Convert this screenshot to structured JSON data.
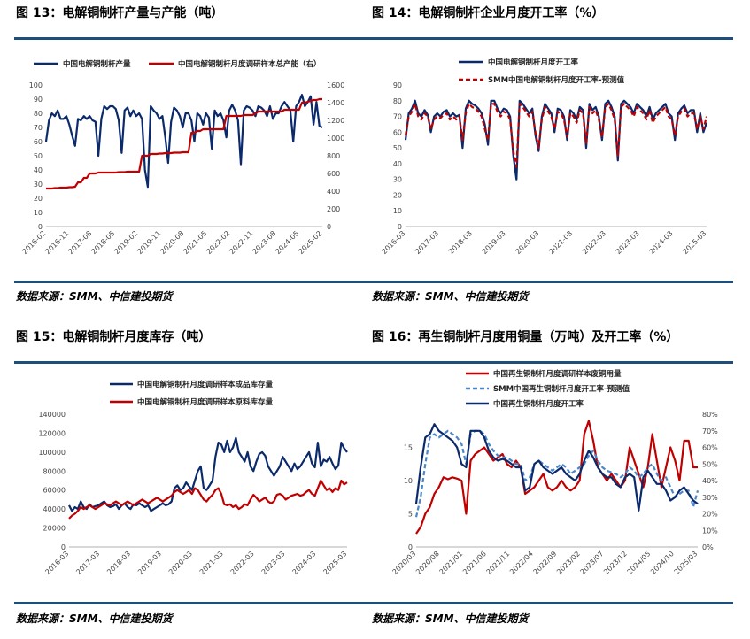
{
  "charts": [
    {
      "id": "c13",
      "title": "图 13：电解铜制杆产量与产能（吨）",
      "source": "数据来源：SMM、中信建投期货"
    },
    {
      "id": "c14",
      "title": "图 14：电解铜制杆企业月度开工率（%）",
      "source": "数据来源：SMM、中信建投期货"
    },
    {
      "id": "c15",
      "title": "图 15：电解铜制杆月度库存（吨）",
      "source": "数据来源：SMM、中信建投期货"
    },
    {
      "id": "c16",
      "title": "图 16：再生铜制杆月度用铜量（万吨）及开工率（%）",
      "source": "数据来源：SMM、中信建投期货"
    }
  ],
  "chart_data": [
    {
      "type": "line",
      "title": "图 13：电解铜制杆产量与产能（吨）",
      "x_ticks": [
        "2016-02",
        "2016-11",
        "2017-08",
        "2018-05",
        "2019-02",
        "2019-11",
        "2020-08",
        "2021-05",
        "2022-02",
        "2022-11",
        "2023-08",
        "2024-05",
        "2025-02"
      ],
      "ylim": [
        0,
        100
      ],
      "y_ticks": [
        0,
        10,
        20,
        30,
        40,
        50,
        60,
        70,
        80,
        90,
        100
      ],
      "y2lim": [
        0,
        1600
      ],
      "y2_ticks": [
        0,
        200,
        400,
        600,
        800,
        1000,
        1200,
        1400,
        1600
      ],
      "colors": [
        "#0b2a6b",
        "#c00000"
      ],
      "series": [
        {
          "name": "中国电解铜制杆产量",
          "axis": "left",
          "values": [
            60,
            75,
            80,
            78,
            82,
            76,
            76,
            78,
            72,
            64,
            57,
            76,
            75,
            78,
            76,
            78,
            75,
            74,
            50,
            76,
            85,
            83,
            85,
            85,
            83,
            75,
            52,
            82,
            84,
            78,
            82,
            78,
            80,
            76,
            40,
            28,
            85,
            82,
            80,
            76,
            78,
            63,
            45,
            74,
            84,
            82,
            78,
            70,
            80,
            80,
            75,
            60,
            80,
            78,
            72,
            80,
            77,
            55,
            82,
            78,
            80,
            75,
            63,
            82,
            86,
            82,
            75,
            44,
            82,
            85,
            84,
            82,
            78,
            85,
            84,
            82,
            78,
            85,
            76,
            80,
            80,
            85,
            88,
            85,
            82,
            60,
            85,
            88,
            93,
            85,
            88,
            92,
            72,
            88,
            71,
            70
          ]
        },
        {
          "name": "中国电解铜制杆月度调研样本总产能（右）",
          "axis": "right",
          "values": [
            430,
            430,
            430,
            435,
            435,
            440,
            440,
            440,
            445,
            445,
            450,
            500,
            500,
            550,
            550,
            600,
            600,
            600,
            610,
            610,
            610,
            610,
            610,
            610,
            610,
            615,
            615,
            615,
            620,
            620,
            620,
            620,
            620,
            800,
            800,
            800,
            820,
            820,
            820,
            825,
            825,
            830,
            830,
            830,
            835,
            835,
            835,
            840,
            840,
            840,
            1060,
            1060,
            1080,
            1080,
            1100,
            1100,
            1100,
            1100,
            1100,
            1100,
            1100,
            1100,
            1250,
            1250,
            1250,
            1250,
            1250,
            1250,
            1260,
            1260,
            1260,
            1260,
            1280,
            1300,
            1300,
            1300,
            1300,
            1300,
            1300,
            1300,
            1300,
            1300,
            1320,
            1320,
            1320,
            1320,
            1320,
            1320,
            1400,
            1400,
            1410,
            1420,
            1430,
            1430,
            1440,
            1440
          ]
        }
      ]
    },
    {
      "type": "line",
      "title": "图 14：电解铜制杆企业月度开工率（%）",
      "x_ticks": [
        "2016-03",
        "2017-03",
        "2018-03",
        "2019-03",
        "2020-03",
        "2021-03",
        "2022-03",
        "2023-03",
        "2024-03",
        "2025-03"
      ],
      "ylim": [
        0,
        90
      ],
      "y_ticks": [
        0,
        10,
        20,
        30,
        40,
        50,
        60,
        70,
        80,
        90
      ],
      "colors": [
        "#0b2a6b",
        "#c00000"
      ],
      "series": [
        {
          "name": "中国电解铜制杆月度开工率",
          "values": [
            55,
            72,
            75,
            80,
            72,
            70,
            74,
            71,
            60,
            70,
            72,
            70,
            73,
            74,
            70,
            72,
            70,
            71,
            50,
            75,
            80,
            78,
            77,
            75,
            72,
            65,
            52,
            80,
            80,
            75,
            72,
            75,
            74,
            70,
            45,
            30,
            80,
            78,
            75,
            72,
            75,
            58,
            48,
            70,
            78,
            75,
            72,
            60,
            75,
            74,
            70,
            55,
            74,
            72,
            68,
            76,
            74,
            50,
            78,
            74,
            76,
            70,
            55,
            78,
            80,
            76,
            70,
            42,
            78,
            80,
            78,
            76,
            72,
            78,
            76,
            74,
            70,
            76,
            68,
            72,
            74,
            76,
            78,
            72,
            70,
            55,
            72,
            75,
            77,
            72,
            74,
            74,
            60,
            72,
            60,
            66
          ]
        },
        {
          "name": "SMM中国电解铜制杆月度开工率-预测值",
          "values": [
            58,
            70,
            73,
            78,
            70,
            68,
            72,
            70,
            62,
            68,
            70,
            69,
            71,
            72,
            68,
            70,
            68,
            70,
            55,
            72,
            78,
            76,
            75,
            73,
            70,
            62,
            55,
            78,
            78,
            73,
            70,
            73,
            72,
            68,
            48,
            38,
            78,
            76,
            73,
            70,
            73,
            60,
            50,
            68,
            76,
            73,
            70,
            62,
            73,
            72,
            68,
            57,
            72,
            70,
            66,
            74,
            72,
            53,
            76,
            72,
            74,
            68,
            57,
            76,
            78,
            74,
            68,
            45,
            76,
            78,
            76,
            74,
            70,
            76,
            74,
            72,
            68,
            74,
            66,
            70,
            72,
            74,
            76,
            70,
            68,
            58,
            70,
            73,
            75,
            70,
            72,
            72,
            62,
            70,
            62,
            70
          ]
        }
      ]
    },
    {
      "type": "line",
      "title": "图 15：电解铜制杆月度库存（吨）",
      "x_ticks": [
        "2016-03",
        "2017-03",
        "2018-03",
        "2019-03",
        "2020-03",
        "2021-03",
        "2022-03",
        "2023-03",
        "2024-03",
        "2025-03"
      ],
      "ylim": [
        0,
        140000
      ],
      "y_ticks": [
        0,
        20000,
        40000,
        60000,
        80000,
        100000,
        120000,
        140000
      ],
      "colors": [
        "#0b2a6b",
        "#c00000"
      ],
      "series": [
        {
          "name": "中国电解铜制杆月度调研样本成品库存量",
          "values": [
            44000,
            38000,
            42000,
            40000,
            48000,
            42000,
            40000,
            45000,
            42000,
            43000,
            44000,
            46000,
            48000,
            44000,
            42000,
            43000,
            45000,
            40000,
            44000,
            46000,
            42000,
            40000,
            45000,
            44000,
            46000,
            44000,
            42000,
            44000,
            38000,
            40000,
            42000,
            44000,
            46000,
            44000,
            45000,
            48000,
            62000,
            65000,
            60000,
            62000,
            68000,
            64000,
            60000,
            70000,
            80000,
            85000,
            62000,
            60000,
            65000,
            70000,
            95000,
            110000,
            108000,
            100000,
            112000,
            100000,
            105000,
            115000,
            100000,
            95000,
            90000,
            100000,
            85000,
            80000,
            90000,
            98000,
            100000,
            96000,
            85000,
            80000,
            75000,
            80000,
            85000,
            95000,
            90000,
            85000,
            80000,
            88000,
            82000,
            85000,
            90000,
            95000,
            100000,
            88000,
            84000,
            110000,
            85000,
            92000,
            90000,
            95000,
            88000,
            82000,
            86000,
            110000,
            104000,
            100000
          ]
        },
        {
          "name": "中国电解铜制杆月度调研样本原料库存量",
          "values": [
            30000,
            33000,
            35000,
            38000,
            42000,
            40000,
            42000,
            44000,
            42000,
            40000,
            42000,
            44000,
            46000,
            45000,
            44000,
            46000,
            48000,
            46000,
            44000,
            46000,
            48000,
            46000,
            44000,
            46000,
            48000,
            50000,
            48000,
            46000,
            48000,
            50000,
            52000,
            50000,
            48000,
            50000,
            52000,
            54000,
            58000,
            60000,
            58000,
            56000,
            58000,
            60000,
            56000,
            62000,
            60000,
            55000,
            50000,
            48000,
            52000,
            55000,
            60000,
            62000,
            56000,
            45000,
            44000,
            45000,
            42000,
            44000,
            40000,
            42000,
            45000,
            44000,
            50000,
            55000,
            52000,
            48000,
            50000,
            52000,
            48000,
            46000,
            48000,
            55000,
            56000,
            54000,
            50000,
            52000,
            54000,
            55000,
            56000,
            54000,
            55000,
            58000,
            60000,
            56000,
            54000,
            62000,
            70000,
            65000,
            60000,
            62000,
            58000,
            62000,
            60000,
            70000,
            66000,
            68000
          ]
        }
      ]
    },
    {
      "type": "line",
      "title": "图 16：再生铜制杆月度用铜量（万吨）及开工率（%）",
      "x_ticks": [
        "2020/03",
        "2020/08",
        "2021/01",
        "2021/06",
        "2021/11",
        "2022/04",
        "2022/09",
        "2023/02",
        "2023/07",
        "2023/12",
        "2024/05",
        "2024/10",
        "2025/03"
      ],
      "ylim": [
        0,
        20
      ],
      "y_ticks": [
        0,
        5,
        10,
        15
      ],
      "y2lim": [
        0,
        0.8
      ],
      "y2_ticks": [
        "0%",
        "10%",
        "20%",
        "30%",
        "40%",
        "50%",
        "60%",
        "70%",
        "80%"
      ],
      "colors": [
        "#c00000",
        "#4a86c8",
        "#0b2a6b"
      ],
      "series": [
        {
          "name": "中国再生铜制杆月度调研样本废铜用量",
          "axis": "left",
          "values": [
            2,
            3,
            5,
            6,
            8,
            9,
            10.5,
            10.2,
            10.5,
            10.3,
            10,
            5,
            13,
            14,
            14.5,
            15,
            14,
            13,
            13.5,
            14,
            12.5,
            12,
            13,
            12,
            8,
            8.5,
            9,
            10,
            11,
            9,
            8.5,
            9,
            10,
            9,
            8.5,
            9,
            10,
            17,
            19,
            16,
            12,
            11,
            10,
            11,
            10,
            9,
            10,
            15,
            13,
            11,
            9,
            12,
            17,
            13,
            9,
            12,
            15,
            13,
            10,
            16,
            16,
            12,
            12
          ]
        },
        {
          "name": "SMM中国再生铜制杆月度开工率-预测值",
          "axis": "right",
          "values": [
            0.18,
            0.3,
            0.5,
            0.66,
            0.68,
            0.66,
            0.68,
            0.7,
            0.68,
            0.66,
            0.62,
            0.5,
            0.68,
            0.7,
            0.7,
            0.68,
            0.62,
            0.58,
            0.55,
            0.54,
            0.54,
            0.52,
            0.5,
            0.5,
            0.4,
            0.42,
            0.5,
            0.52,
            0.5,
            0.48,
            0.46,
            0.48,
            0.5,
            0.48,
            0.44,
            0.46,
            0.48,
            0.5,
            0.55,
            0.58,
            0.52,
            0.48,
            0.46,
            0.45,
            0.44,
            0.42,
            0.44,
            0.48,
            0.46,
            0.42,
            0.44,
            0.48,
            0.5,
            0.44,
            0.4,
            0.42,
            0.36,
            0.3,
            0.32,
            0.34,
            0.34,
            0.24,
            0.34
          ]
        },
        {
          "name": "中国再生铜制杆月度开工率",
          "axis": "right",
          "values": [
            0.26,
            0.48,
            0.66,
            0.68,
            0.74,
            0.7,
            0.68,
            0.66,
            0.64,
            0.6,
            0.5,
            0.48,
            0.7,
            0.7,
            0.7,
            0.66,
            0.58,
            0.54,
            0.52,
            0.53,
            0.52,
            0.5,
            0.48,
            0.48,
            0.34,
            0.36,
            0.5,
            0.52,
            0.48,
            0.46,
            0.44,
            0.46,
            0.48,
            0.44,
            0.42,
            0.4,
            0.44,
            0.52,
            0.58,
            0.54,
            0.48,
            0.44,
            0.42,
            0.42,
            0.38,
            0.36,
            0.42,
            0.44,
            0.42,
            0.22,
            0.42,
            0.46,
            0.42,
            0.38,
            0.38,
            0.34,
            0.28,
            0.3,
            0.34,
            0.36,
            0.32,
            0.28,
            0.26
          ]
        }
      ]
    }
  ]
}
